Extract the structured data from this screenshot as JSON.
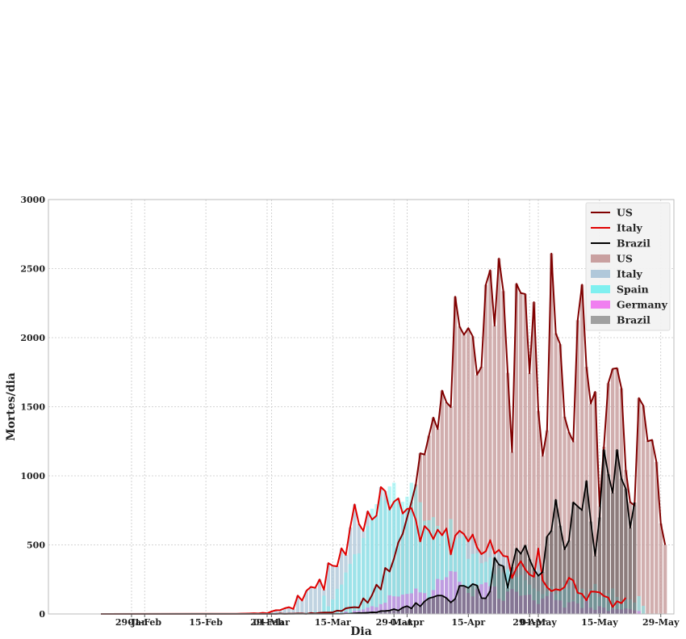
{
  "chart_data": {
    "type": "bar",
    "xlabel": "Dia",
    "ylabel": "Mortes/dia",
    "ylim": [
      0,
      3000
    ],
    "yticks": [
      0,
      500,
      1000,
      1500,
      2000,
      2500,
      3000
    ],
    "xlim": [
      "2020-01-10",
      "2020-06-01"
    ],
    "x_start": "2020-01-22",
    "xtick_labels": [
      {
        "date": "2020-01-29",
        "label": "29-Jan"
      },
      {
        "date": "2020-02-01",
        "label": "01-Feb"
      },
      {
        "date": "2020-02-15",
        "label": "15-Feb"
      },
      {
        "date": "2020-02-29",
        "label": "29-Feb"
      },
      {
        "date": "2020-03-01",
        "label": "01-Mar"
      },
      {
        "date": "2020-03-15",
        "label": "15-Mar"
      },
      {
        "date": "2020-03-29",
        "label": "29-Mar"
      },
      {
        "date": "2020-04-01",
        "label": "01-Apr"
      },
      {
        "date": "2020-04-15",
        "label": "15-Apr"
      },
      {
        "date": "2020-04-29",
        "label": "29-Apr"
      },
      {
        "date": "2020-05-01",
        "label": "01-May"
      },
      {
        "date": "2020-05-15",
        "label": "15-May"
      },
      {
        "date": "2020-05-29",
        "label": "29-May"
      }
    ],
    "grid": true,
    "legend_position": "top-right",
    "legend": [
      {
        "label": "US",
        "kind": "line",
        "color": "#800000"
      },
      {
        "label": "Italy",
        "kind": "line",
        "color": "#e00000"
      },
      {
        "label": "Brazil",
        "kind": "line",
        "color": "#000000"
      },
      {
        "label": "US",
        "kind": "bar",
        "color": "#c9a0a0"
      },
      {
        "label": "Italy",
        "kind": "bar",
        "color": "#b0c8da"
      },
      {
        "label": "Spain",
        "kind": "bar",
        "color": "#7ff0f0"
      },
      {
        "label": "Germany",
        "kind": "bar",
        "color": "#f07ff0"
      },
      {
        "label": "Brazil",
        "kind": "bar",
        "color": "#a0a0a0"
      }
    ],
    "series": [
      {
        "name": "US",
        "color": "#800000",
        "bar_color": "#c9a0a0",
        "start": "2020-03-01",
        "values": [
          1,
          0,
          4,
          1,
          2,
          2,
          4,
          4,
          1,
          7,
          4,
          8,
          10,
          10,
          12,
          24,
          21,
          41,
          46,
          49,
          46,
          113,
          81,
          137,
          212,
          177,
          333,
          307,
          400,
          518,
          580,
          697,
          810,
          938,
          1163,
          1154,
          1290,
          1422,
          1338,
          1617,
          1532,
          1497,
          2297,
          2080,
          2021,
          2069,
          2010,
          1732,
          1789,
          2383,
          2488,
          2087,
          2573,
          2337,
          1745,
          1172,
          2390,
          2323,
          2316,
          1742,
          2257,
          1470,
          1145,
          1329,
          2609,
          2031,
          1952,
          1428,
          1315,
          1248,
          2126,
          2384,
          1789,
          1523,
          1608,
          780,
          1210,
          1670,
          1774,
          1779,
          1633,
          1042,
          810,
          785,
          1563,
          1508,
          1250,
          1260,
          1101,
          655,
          500
        ],
        "style": "line+bar"
      },
      {
        "name": "Italy",
        "color": "#e00000",
        "bar_color": "#b0c8da",
        "start": "2020-02-21",
        "values": [
          1,
          1,
          2,
          3,
          4,
          5,
          4,
          8,
          5,
          18,
          27,
          28,
          41,
          49,
          36,
          133,
          97,
          168,
          196,
          189,
          250,
          175,
          368,
          349,
          345,
          475,
          427,
          627,
          793,
          651,
          601,
          743,
          683,
          712,
          919,
          889,
          756,
          812,
          837,
          727,
          760,
          766,
          681,
          525,
          636,
          604,
          542,
          610,
          570,
          619,
          431,
          566,
          602,
          578,
          525,
          575,
          482,
          433,
          454,
          534,
          437,
          464,
          420,
          415,
          260,
          333,
          382,
          323,
          285,
          269,
          474,
          243,
          194,
          165,
          179,
          172,
          195,
          262,
          242,
          153,
          145,
          99,
          162,
          161,
          156,
          130,
          119,
          50,
          92,
          78,
          117
        ],
        "style": "line+bar"
      },
      {
        "name": "Spain",
        "color": "#7ff0f0",
        "start": "2020-03-03",
        "values": [
          1,
          0,
          1,
          2,
          5,
          7,
          11,
          7,
          19,
          5,
          133,
          55,
          105,
          182,
          213,
          300,
          362,
          432,
          438,
          550,
          637,
          762,
          795,
          845,
          822,
          923,
          950,
          838,
          812,
          849,
          950,
          932,
          809,
          674,
          678,
          701,
          637,
          567,
          619,
          687,
          539,
          551,
          564,
          399,
          435,
          440,
          367,
          378,
          410,
          288,
          331,
          301,
          325,
          276,
          268,
          281,
          244,
          213,
          185,
          164,
          144,
          164,
          199,
          143,
          179,
          229,
          184,
          102,
          176,
          183,
          138,
          179,
          217,
          123,
          125,
          149,
          185,
          123,
          99,
          104,
          105,
          83,
          129,
          59
        ],
        "style": "bar"
      },
      {
        "name": "Germany",
        "color": "#f07ff0",
        "start": "2020-03-09",
        "values": [
          2,
          0,
          1,
          1,
          2,
          2,
          6,
          4,
          8,
          17,
          6,
          24,
          25,
          33,
          46,
          56,
          49,
          71,
          81,
          135,
          128,
          126,
          140,
          145,
          149,
          184,
          156,
          151,
          113,
          173,
          254,
          246,
          266,
          310,
          306,
          233,
          200,
          152,
          127,
          180,
          215,
          228,
          200,
          199,
          110,
          95,
          162,
          180,
          161,
          132,
          136,
          140,
          99,
          72,
          112,
          130,
          153,
          101,
          98,
          46,
          84,
          91,
          77,
          43,
          110,
          45,
          30,
          56,
          46,
          22,
          37,
          36,
          33,
          40,
          34,
          26,
          21
        ],
        "style": "bar"
      },
      {
        "name": "Brazil",
        "color": "#000000",
        "bar_color": "#a0a0a0",
        "start": "2020-03-17",
        "values": [
          1,
          2,
          3,
          5,
          7,
          7,
          9,
          12,
          11,
          21,
          22,
          25,
          35,
          25,
          46,
          57,
          40,
          80,
          55,
          91,
          114,
          122,
          134,
          133,
          115,
          83,
          109,
          204,
          204,
          188,
          217,
          206,
          115,
          113,
          166,
          407,
          357,
          346,
          189,
          338,
          474,
          435,
          496,
          396,
          323,
          276,
          304,
          560,
          603,
          827,
          639,
          467,
          530,
          808,
          779,
          751,
          963,
          669,
          421,
          699,
          1188,
          1011,
          877,
          1188,
          979,
          906,
          623,
          807
        ],
        "style": "line+bar"
      }
    ]
  }
}
